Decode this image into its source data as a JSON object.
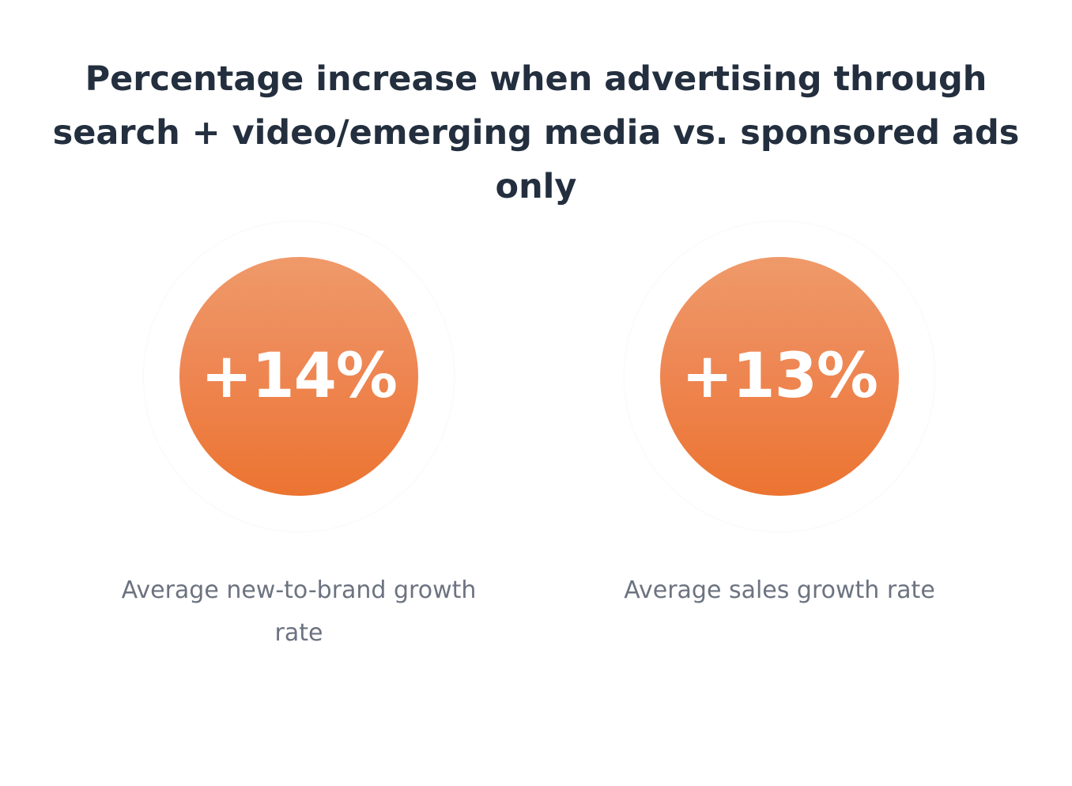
{
  "title": "Percentage increase when advertising through search + video/emerging media vs. sponsored ads only",
  "stats": [
    {
      "value": "+14%",
      "label": "Average new-to-brand growth rate"
    },
    {
      "value": "+13%",
      "label": "Average sales growth rate"
    }
  ],
  "colors": {
    "title": "#232f3e",
    "accent_top": "#ef9a6a",
    "accent_bottom": "#ec7431",
    "label": "#6c7380"
  }
}
